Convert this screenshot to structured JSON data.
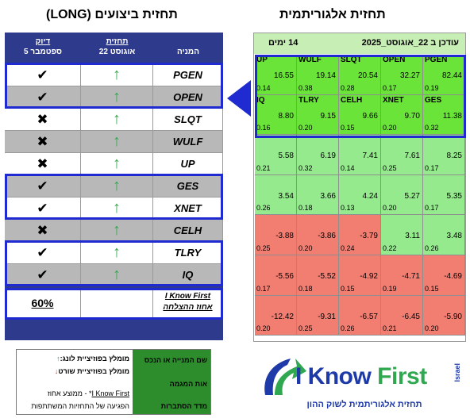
{
  "titles": {
    "performance": "תחזית ביצועים (LONG)",
    "algorithmic": "תחזית אלגוריתמית"
  },
  "performance_table": {
    "headers": {
      "stock": "המניה",
      "forecast_title": "תחזית",
      "forecast_date": "22 אוגוסט",
      "accuracy_title": "דיוק",
      "accuracy_date": "5 ספטמבר"
    },
    "rows": [
      {
        "ticker": "PGEN",
        "forecast": "↑",
        "result": "✔"
      },
      {
        "ticker": "OPEN",
        "forecast": "↑",
        "result": "✔"
      },
      {
        "ticker": "SLQT",
        "forecast": "↑",
        "result": "✖"
      },
      {
        "ticker": "WULF",
        "forecast": "↑",
        "result": "✖"
      },
      {
        "ticker": "UP",
        "forecast": "↑",
        "result": "✖"
      },
      {
        "ticker": "GES",
        "forecast": "↑",
        "result": "✔"
      },
      {
        "ticker": "XNET",
        "forecast": "↑",
        "result": "✔"
      },
      {
        "ticker": "CELH",
        "forecast": "↑",
        "result": "✖"
      },
      {
        "ticker": "TLRY",
        "forecast": "↑",
        "result": "✔"
      },
      {
        "ticker": "IQ",
        "forecast": "↑",
        "result": "✔"
      }
    ],
    "summary_label_1": "I Know First",
    "summary_label_2": "אחוז ההצלחה",
    "summary_value": "60%"
  },
  "heatmap": {
    "header_updated": "עודכן ב 22_אוגוסט_2025",
    "header_days": "14 ימים",
    "cells": [
      {
        "ticker": "PGEN",
        "signal": "82.44",
        "pred": "0.19",
        "color": "bright"
      },
      {
        "ticker": "OPEN",
        "signal": "32.27",
        "pred": "0.17",
        "color": "bright"
      },
      {
        "ticker": "SLQT",
        "signal": "20.54",
        "pred": "0.28",
        "color": "bright"
      },
      {
        "ticker": "WULF",
        "signal": "19.14",
        "pred": "0.38",
        "color": "bright"
      },
      {
        "ticker": "UP",
        "signal": "16.55",
        "pred": "0.14",
        "color": "bright"
      },
      {
        "ticker": "GES",
        "signal": "11.38",
        "pred": "0.32",
        "color": "bright"
      },
      {
        "ticker": "XNET",
        "signal": "9.70",
        "pred": "0.20",
        "color": "bright"
      },
      {
        "ticker": "CELH",
        "signal": "9.66",
        "pred": "0.15",
        "color": "bright"
      },
      {
        "ticker": "TLRY",
        "signal": "9.15",
        "pred": "0.20",
        "color": "bright"
      },
      {
        "ticker": "IQ",
        "signal": "8.80",
        "pred": "0.16",
        "color": "bright"
      },
      {
        "ticker": "",
        "signal": "8.25",
        "pred": "0.17",
        "color": "light"
      },
      {
        "ticker": "",
        "signal": "7.61",
        "pred": "0.25",
        "color": "light"
      },
      {
        "ticker": "",
        "signal": "7.41",
        "pred": "0.14",
        "color": "light"
      },
      {
        "ticker": "",
        "signal": "6.19",
        "pred": "0.32",
        "color": "light"
      },
      {
        "ticker": "",
        "signal": "5.58",
        "pred": "0.21",
        "color": "light"
      },
      {
        "ticker": "",
        "signal": "5.35",
        "pred": "0.17",
        "color": "light"
      },
      {
        "ticker": "",
        "signal": "5.27",
        "pred": "0.20",
        "color": "light"
      },
      {
        "ticker": "",
        "signal": "4.24",
        "pred": "0.13",
        "color": "light"
      },
      {
        "ticker": "",
        "signal": "3.66",
        "pred": "0.18",
        "color": "light"
      },
      {
        "ticker": "",
        "signal": "3.54",
        "pred": "0.26",
        "color": "light"
      },
      {
        "ticker": "",
        "signal": "3.48",
        "pred": "0.26",
        "color": "light"
      },
      {
        "ticker": "",
        "signal": "3.11",
        "pred": "0.22",
        "color": "light"
      },
      {
        "ticker": "",
        "signal": "-3.79",
        "pred": "0.24",
        "color": "red"
      },
      {
        "ticker": "",
        "signal": "-3.86",
        "pred": "0.20",
        "color": "red"
      },
      {
        "ticker": "",
        "signal": "-3.88",
        "pred": "0.25",
        "color": "red"
      },
      {
        "ticker": "",
        "signal": "-4.69",
        "pred": "0.15",
        "color": "red"
      },
      {
        "ticker": "",
        "signal": "-4.71",
        "pred": "0.19",
        "color": "red"
      },
      {
        "ticker": "",
        "signal": "-4.92",
        "pred": "0.15",
        "color": "red"
      },
      {
        "ticker": "",
        "signal": "-5.52",
        "pred": "0.18",
        "color": "red"
      },
      {
        "ticker": "",
        "signal": "-5.56",
        "pred": "0.17",
        "color": "red"
      },
      {
        "ticker": "",
        "signal": "-5.90",
        "pred": "0.20",
        "color": "red"
      },
      {
        "ticker": "",
        "signal": "-6.45",
        "pred": "0.21",
        "color": "red"
      },
      {
        "ticker": "",
        "signal": "-6.57",
        "pred": "0.26",
        "color": "red"
      },
      {
        "ticker": "",
        "signal": "-9.31",
        "pred": "0.25",
        "color": "red"
      },
      {
        "ticker": "",
        "signal": "-12.42",
        "pred": "0.20",
        "color": "red"
      }
    ]
  },
  "legend": {
    "green_box": [
      "שם המנייה או הנכס",
      "אות המגמה",
      "מדד הסתברות"
    ],
    "up_text": "מומלץ בפוזיציית לונג:",
    "up_arrow": "↑",
    "down_text": "מומלץ בפוזיציית שורט",
    "down_arrow": "↓",
    "accuracy_note_brand": "I Know First",
    "accuracy_note_rest": "* - ממוצע אחוז",
    "accuracy_note_line2": "הפגיעה של התחזיות המשתתפות"
  },
  "logo": {
    "brand_part1": "I Know",
    "brand_part2": "First",
    "country": "Israel",
    "tagline": "תחזית אלגוריתמית לשוק ההון"
  },
  "colors": {
    "navy": "#2e3a8c",
    "highlight_blue": "#1f2bd0",
    "bright_green": "#6be43a",
    "light_green": "#94ea8d",
    "red": "#f27e72",
    "legend_green": "#2d8d2d"
  }
}
